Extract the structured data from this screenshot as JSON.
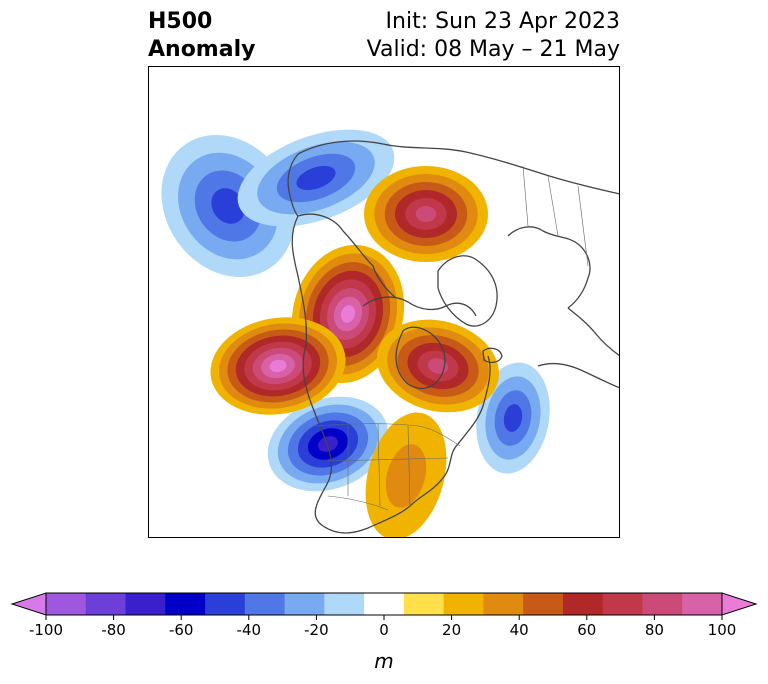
{
  "title": {
    "left_line1": "H500",
    "left_line2": "Anomaly",
    "right_line1": "Init: Sun 23 Apr 2023",
    "right_line2": "Valid: 08 May – 21 May"
  },
  "colorbar": {
    "unit": "m",
    "min": -100,
    "max": 100,
    "ticks": [
      "-100",
      "-80",
      "-60",
      "-40",
      "-20",
      "0",
      "20",
      "40",
      "60",
      "80",
      "100"
    ],
    "colors": [
      "#d67ae8",
      "#9f57e0",
      "#6b3fd8",
      "#3a1fcc",
      "#0000c8",
      "#2a3fd8",
      "#4f77e6",
      "#77aaf0",
      "#b0d8f8",
      "#ffffff",
      "#ffe04a",
      "#f0b400",
      "#e08a10",
      "#c85a18",
      "#b02828",
      "#c0384a",
      "#cc4a78",
      "#d862a8",
      "#ea7cd8"
    ]
  },
  "anomalies": [
    {
      "name": "eastern-pacific-low",
      "sign": "negative",
      "peak_m": -40
    },
    {
      "name": "western-us-low",
      "sign": "negative",
      "peak_m": -60
    },
    {
      "name": "north-atlantic-low",
      "sign": "negative",
      "peak_m": -40
    },
    {
      "name": "northern-europe-low",
      "sign": "negative",
      "peak_m": -40
    },
    {
      "name": "alaska-high",
      "sign": "positive",
      "peak_m": 80
    },
    {
      "name": "gulf-of-alaska-high",
      "sign": "positive",
      "peak_m": 80
    },
    {
      "name": "hudson-bay-high",
      "sign": "positive",
      "peak_m": 60
    },
    {
      "name": "east-siberia-high",
      "sign": "positive",
      "peak_m": 60
    },
    {
      "name": "eastern-us-high",
      "sign": "positive",
      "peak_m": 20
    }
  ]
}
